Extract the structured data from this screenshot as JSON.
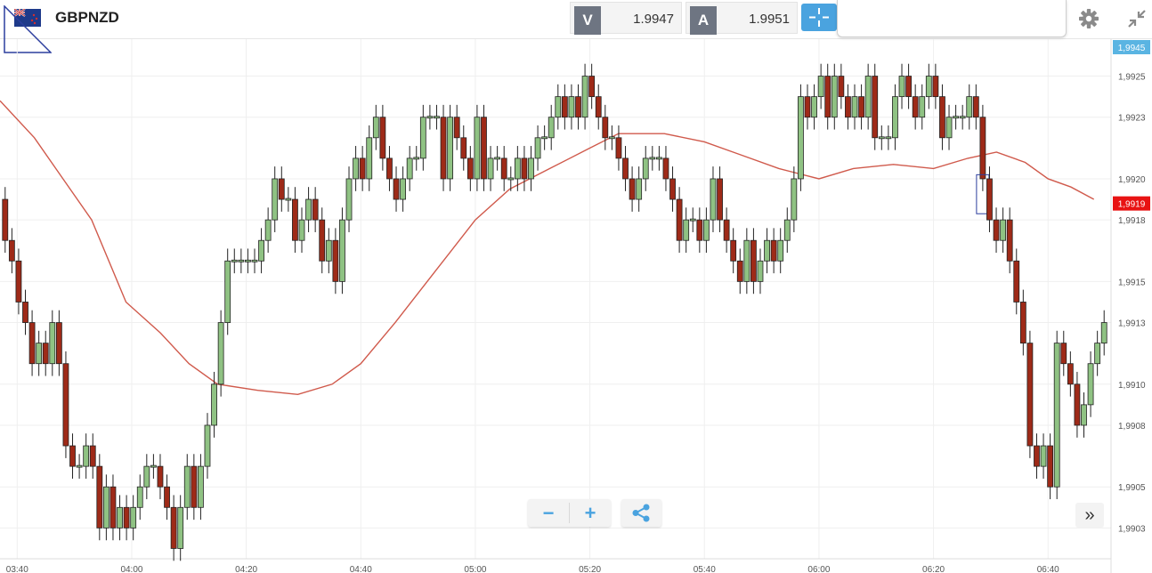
{
  "header": {
    "symbol": "GBPNZD",
    "flag_icon": "gb-nz-flag-icon",
    "sell": {
      "label": "V",
      "price": "1.9947"
    },
    "buy": {
      "label": "A",
      "price": "1.9951"
    }
  },
  "colors": {
    "bull": "#8fc283",
    "bear": "#9e2a18",
    "ma": "#d05a4c",
    "accent": "#4aa3df",
    "current_price_bg": "#e81313",
    "top_price_bg": "#5ab4e2"
  },
  "controls": {
    "zoom_out": "−",
    "zoom_in": "+",
    "scroll_right": "»"
  },
  "chart_data": {
    "type": "candlestick",
    "instrument": "GBPNZD",
    "ylim": [
      1.99015,
      1.99268
    ],
    "xlim": [
      "03:37",
      "06:51"
    ],
    "price_ticks": [
      "1,9903",
      "1,9905",
      "1,9908",
      "1,9910",
      "1,9913",
      "1,9915",
      "1,9918",
      "1,9920",
      "1,9923",
      "1,9925"
    ],
    "price_tick_values": [
      1.9903,
      1.9905,
      1.9908,
      1.991,
      1.9913,
      1.9915,
      1.9918,
      1.992,
      1.9923,
      1.9925
    ],
    "time_ticks": [
      "03:40",
      "04:00",
      "04:20",
      "04:40",
      "05:00",
      "05:20",
      "05:40",
      "06:00",
      "06:20",
      "06:40"
    ],
    "time_tick_minutes": [
      220,
      240,
      260,
      280,
      300,
      320,
      340,
      360,
      380,
      400
    ],
    "current_price_label": "1,9919",
    "top_price_label": "1,9945",
    "current_price": 1.99188,
    "candles": [
      {
        "o": 1.9919,
        "c": 1.9917
      },
      {
        "o": 1.9917,
        "c": 1.9916
      },
      {
        "o": 1.9916,
        "c": 1.9914
      },
      {
        "o": 1.9914,
        "c": 1.9913
      },
      {
        "o": 1.9913,
        "c": 1.9911
      },
      {
        "o": 1.9911,
        "c": 1.9912
      },
      {
        "o": 1.9912,
        "c": 1.9911
      },
      {
        "o": 1.9911,
        "c": 1.9913
      },
      {
        "o": 1.9913,
        "c": 1.9911
      },
      {
        "o": 1.9911,
        "c": 1.9907
      },
      {
        "o": 1.9907,
        "c": 1.9906
      },
      {
        "o": 1.9906,
        "c": 1.9906
      },
      {
        "o": 1.9906,
        "c": 1.9907
      },
      {
        "o": 1.9907,
        "c": 1.9906
      },
      {
        "o": 1.9906,
        "c": 1.9903
      },
      {
        "o": 1.9903,
        "c": 1.9905
      },
      {
        "o": 1.9905,
        "c": 1.9903
      },
      {
        "o": 1.9903,
        "c": 1.9904
      },
      {
        "o": 1.9904,
        "c": 1.9903
      },
      {
        "o": 1.9903,
        "c": 1.9904
      },
      {
        "o": 1.9904,
        "c": 1.9905
      },
      {
        "o": 1.9905,
        "c": 1.9906
      },
      {
        "o": 1.9906,
        "c": 1.9906
      },
      {
        "o": 1.9906,
        "c": 1.9905
      },
      {
        "o": 1.9905,
        "c": 1.9904
      },
      {
        "o": 1.9904,
        "c": 1.9902
      },
      {
        "o": 1.9902,
        "c": 1.9904
      },
      {
        "o": 1.9904,
        "c": 1.9906
      },
      {
        "o": 1.9906,
        "c": 1.9904
      },
      {
        "o": 1.9904,
        "c": 1.9906
      },
      {
        "o": 1.9906,
        "c": 1.9908
      },
      {
        "o": 1.9908,
        "c": 1.991
      },
      {
        "o": 1.991,
        "c": 1.9913
      },
      {
        "o": 1.9913,
        "c": 1.9916
      },
      {
        "o": 1.9916,
        "c": 1.9916
      },
      {
        "o": 1.9916,
        "c": 1.9916
      },
      {
        "o": 1.9916,
        "c": 1.9916
      },
      {
        "o": 1.9916,
        "c": 1.9916
      },
      {
        "o": 1.9916,
        "c": 1.9917
      },
      {
        "o": 1.9917,
        "c": 1.9918
      },
      {
        "o": 1.9918,
        "c": 1.992
      },
      {
        "o": 1.992,
        "c": 1.9919
      },
      {
        "o": 1.9919,
        "c": 1.9919
      },
      {
        "o": 1.9919,
        "c": 1.9917
      },
      {
        "o": 1.9917,
        "c": 1.9918
      },
      {
        "o": 1.9918,
        "c": 1.9919
      },
      {
        "o": 1.9919,
        "c": 1.9918
      },
      {
        "o": 1.9918,
        "c": 1.9916
      },
      {
        "o": 1.9916,
        "c": 1.9917
      },
      {
        "o": 1.9917,
        "c": 1.9915
      },
      {
        "o": 1.9915,
        "c": 1.9918
      },
      {
        "o": 1.9918,
        "c": 1.992
      },
      {
        "o": 1.992,
        "c": 1.9921
      },
      {
        "o": 1.9921,
        "c": 1.992
      },
      {
        "o": 1.992,
        "c": 1.9922
      },
      {
        "o": 1.9922,
        "c": 1.9923
      },
      {
        "o": 1.9923,
        "c": 1.9921
      },
      {
        "o": 1.9921,
        "c": 1.992
      },
      {
        "o": 1.992,
        "c": 1.9919
      },
      {
        "o": 1.9919,
        "c": 1.992
      },
      {
        "o": 1.992,
        "c": 1.9921
      },
      {
        "o": 1.9921,
        "c": 1.9921
      },
      {
        "o": 1.9921,
        "c": 1.9923
      },
      {
        "o": 1.9923,
        "c": 1.9923
      },
      {
        "o": 1.9923,
        "c": 1.9923
      },
      {
        "o": 1.9923,
        "c": 1.992
      },
      {
        "o": 1.992,
        "c": 1.9923
      },
      {
        "o": 1.9923,
        "c": 1.9922
      },
      {
        "o": 1.9922,
        "c": 1.9921
      },
      {
        "o": 1.9921,
        "c": 1.992
      },
      {
        "o": 1.992,
        "c": 1.9923
      },
      {
        "o": 1.9923,
        "c": 1.992
      },
      {
        "o": 1.992,
        "c": 1.9921
      },
      {
        "o": 1.9921,
        "c": 1.9921
      },
      {
        "o": 1.9921,
        "c": 1.992
      },
      {
        "o": 1.992,
        "c": 1.992
      },
      {
        "o": 1.992,
        "c": 1.9921
      },
      {
        "o": 1.9921,
        "c": 1.992
      },
      {
        "o": 1.992,
        "c": 1.9921
      },
      {
        "o": 1.9921,
        "c": 1.9922
      },
      {
        "o": 1.9922,
        "c": 1.9922
      },
      {
        "o": 1.9922,
        "c": 1.9923
      },
      {
        "o": 1.9923,
        "c": 1.9924
      },
      {
        "o": 1.9924,
        "c": 1.9923
      },
      {
        "o": 1.9923,
        "c": 1.9924
      },
      {
        "o": 1.9924,
        "c": 1.9923
      },
      {
        "o": 1.9923,
        "c": 1.9925
      },
      {
        "o": 1.9925,
        "c": 1.9924
      },
      {
        "o": 1.9924,
        "c": 1.9923
      },
      {
        "o": 1.9923,
        "c": 1.9922
      },
      {
        "o": 1.9922,
        "c": 1.9922
      },
      {
        "o": 1.9922,
        "c": 1.9921
      },
      {
        "o": 1.9921,
        "c": 1.992
      },
      {
        "o": 1.992,
        "c": 1.9919
      },
      {
        "o": 1.9919,
        "c": 1.992
      },
      {
        "o": 1.992,
        "c": 1.9921
      },
      {
        "o": 1.9921,
        "c": 1.9921
      },
      {
        "o": 1.9921,
        "c": 1.9921
      },
      {
        "o": 1.9921,
        "c": 1.992
      },
      {
        "o": 1.992,
        "c": 1.9919
      },
      {
        "o": 1.9919,
        "c": 1.9917
      },
      {
        "o": 1.9917,
        "c": 1.9918
      },
      {
        "o": 1.9918,
        "c": 1.9918
      },
      {
        "o": 1.9918,
        "c": 1.9917
      },
      {
        "o": 1.9917,
        "c": 1.9918
      },
      {
        "o": 1.9918,
        "c": 1.992
      },
      {
        "o": 1.992,
        "c": 1.9918
      },
      {
        "o": 1.9918,
        "c": 1.9917
      },
      {
        "o": 1.9917,
        "c": 1.9916
      },
      {
        "o": 1.9916,
        "c": 1.9915
      },
      {
        "o": 1.9915,
        "c": 1.9917
      },
      {
        "o": 1.9917,
        "c": 1.9915
      },
      {
        "o": 1.9915,
        "c": 1.9916
      },
      {
        "o": 1.9916,
        "c": 1.9917
      },
      {
        "o": 1.9917,
        "c": 1.9916
      },
      {
        "o": 1.9916,
        "c": 1.9917
      },
      {
        "o": 1.9917,
        "c": 1.9918
      },
      {
        "o": 1.9918,
        "c": 1.992
      },
      {
        "o": 1.992,
        "c": 1.9924
      },
      {
        "o": 1.9924,
        "c": 1.9923
      },
      {
        "o": 1.9923,
        "c": 1.9924
      },
      {
        "o": 1.9924,
        "c": 1.9925
      },
      {
        "o": 1.9925,
        "c": 1.9923
      },
      {
        "o": 1.9923,
        "c": 1.9925
      },
      {
        "o": 1.9925,
        "c": 1.9924
      },
      {
        "o": 1.9924,
        "c": 1.9923
      },
      {
        "o": 1.9923,
        "c": 1.9924
      },
      {
        "o": 1.9924,
        "c": 1.9923
      },
      {
        "o": 1.9923,
        "c": 1.9925
      },
      {
        "o": 1.9925,
        "c": 1.9922
      },
      {
        "o": 1.9922,
        "c": 1.9922
      },
      {
        "o": 1.9922,
        "c": 1.9922
      },
      {
        "o": 1.9922,
        "c": 1.9924
      },
      {
        "o": 1.9924,
        "c": 1.9925
      },
      {
        "o": 1.9925,
        "c": 1.9924
      },
      {
        "o": 1.9924,
        "c": 1.9923
      },
      {
        "o": 1.9923,
        "c": 1.9924
      },
      {
        "o": 1.9924,
        "c": 1.9925
      },
      {
        "o": 1.9925,
        "c": 1.9924
      },
      {
        "o": 1.9924,
        "c": 1.9922
      },
      {
        "o": 1.9922,
        "c": 1.9923
      },
      {
        "o": 1.9923,
        "c": 1.9923
      },
      {
        "o": 1.9923,
        "c": 1.9923
      },
      {
        "o": 1.9923,
        "c": 1.9924
      },
      {
        "o": 1.9924,
        "c": 1.9923
      },
      {
        "o": 1.9923,
        "c": 1.992
      },
      {
        "o": 1.992,
        "c": 1.9918
      },
      {
        "o": 1.9918,
        "c": 1.9917
      },
      {
        "o": 1.9917,
        "c": 1.9918
      },
      {
        "o": 1.9918,
        "c": 1.9916
      },
      {
        "o": 1.9916,
        "c": 1.9914
      },
      {
        "o": 1.9914,
        "c": 1.9912
      },
      {
        "o": 1.9912,
        "c": 1.9907
      },
      {
        "o": 1.9907,
        "c": 1.9906
      },
      {
        "o": 1.9906,
        "c": 1.9907
      },
      {
        "o": 1.9907,
        "c": 1.9905
      },
      {
        "o": 1.9905,
        "c": 1.9912
      },
      {
        "o": 1.9912,
        "c": 1.9911
      },
      {
        "o": 1.9911,
        "c": 1.991
      },
      {
        "o": 1.991,
        "c": 1.9908
      },
      {
        "o": 1.9908,
        "c": 1.9909
      },
      {
        "o": 1.9909,
        "c": 1.9911
      },
      {
        "o": 1.9911,
        "c": 1.9912
      },
      {
        "o": 1.9912,
        "c": 1.9913
      }
    ],
    "moving_average": [
      {
        "t": 217,
        "v": 1.99238
      },
      {
        "t": 223,
        "v": 1.9922
      },
      {
        "t": 228,
        "v": 1.992
      },
      {
        "t": 233,
        "v": 1.9918
      },
      {
        "t": 239,
        "v": 1.9914
      },
      {
        "t": 245,
        "v": 1.99125
      },
      {
        "t": 250,
        "v": 1.9911
      },
      {
        "t": 255,
        "v": 1.991
      },
      {
        "t": 262,
        "v": 1.99097
      },
      {
        "t": 269,
        "v": 1.99095
      },
      {
        "t": 275,
        "v": 1.991
      },
      {
        "t": 280,
        "v": 1.9911
      },
      {
        "t": 286,
        "v": 1.9913
      },
      {
        "t": 293,
        "v": 1.99155
      },
      {
        "t": 300,
        "v": 1.9918
      },
      {
        "t": 306,
        "v": 1.99195
      },
      {
        "t": 313,
        "v": 1.99205
      },
      {
        "t": 320,
        "v": 1.99215
      },
      {
        "t": 325,
        "v": 1.99222
      },
      {
        "t": 333,
        "v": 1.99222
      },
      {
        "t": 340,
        "v": 1.99218
      },
      {
        "t": 346,
        "v": 1.99212
      },
      {
        "t": 353,
        "v": 1.99205
      },
      {
        "t": 360,
        "v": 1.992
      },
      {
        "t": 366,
        "v": 1.99205
      },
      {
        "t": 373,
        "v": 1.99207
      },
      {
        "t": 380,
        "v": 1.99205
      },
      {
        "t": 386,
        "v": 1.9921
      },
      {
        "t": 391,
        "v": 1.99213
      },
      {
        "t": 396,
        "v": 1.99208
      },
      {
        "t": 400,
        "v": 1.992
      },
      {
        "t": 404,
        "v": 1.99196
      },
      {
        "t": 408,
        "v": 1.9919
      }
    ],
    "highlighted_candle_index": 145
  }
}
